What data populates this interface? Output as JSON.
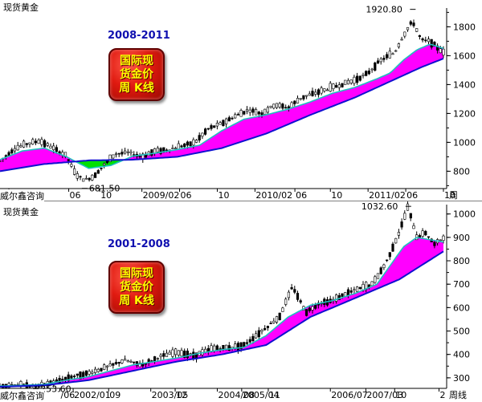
{
  "chart_data": [
    {
      "type": "candlestick",
      "title": "现货黄金",
      "range_label": "2008-2011",
      "badge_lines": [
        "国际现",
        "货金价",
        "周 K线"
      ],
      "credit": "威尔鑫咨询",
      "x_tick_labels": [
        ".2",
        "06",
        "10",
        "2009/02",
        "06",
        "10",
        "2010/02",
        "06",
        "10",
        "2011/02",
        "06",
        "10"
      ],
      "period_label": "周",
      "y_ticks": [
        800,
        1000,
        1200,
        1400,
        1600,
        1800
      ],
      "ylim": [
        680,
        1930
      ],
      "annotations": [
        {
          "text": "1920.80",
          "value": 1920.8
        },
        {
          "text": "681.50",
          "value": 681.5
        }
      ],
      "series": [
        {
          "kind": "price",
          "x": [
            0.0,
            0.03,
            0.06,
            0.09,
            0.12,
            0.15,
            0.17,
            0.19,
            0.21,
            0.23,
            0.26,
            0.29,
            0.32,
            0.35,
            0.38,
            0.41,
            0.44,
            0.47,
            0.5,
            0.53,
            0.56,
            0.59,
            0.62,
            0.65,
            0.68,
            0.71,
            0.74,
            0.77,
            0.8,
            0.83,
            0.85,
            0.87,
            0.89,
            0.91,
            0.93,
            0.95,
            0.97,
            1.0
          ],
          "values": [
            870,
            950,
            990,
            1010,
            960,
            905,
            780,
            740,
            760,
            830,
            920,
            930,
            900,
            940,
            950,
            975,
            1000,
            1095,
            1130,
            1180,
            1225,
            1200,
            1260,
            1240,
            1310,
            1340,
            1370,
            1400,
            1430,
            1480,
            1545,
            1590,
            1620,
            1740,
            1840,
            1710,
            1700,
            1620
          ]
        },
        {
          "kind": "short_ma",
          "x": [
            0.0,
            0.05,
            0.1,
            0.15,
            0.2,
            0.25,
            0.3,
            0.35,
            0.4,
            0.45,
            0.5,
            0.55,
            0.6,
            0.65,
            0.7,
            0.75,
            0.8,
            0.85,
            0.88,
            0.91,
            0.94,
            0.97,
            1.0
          ],
          "values": [
            880,
            940,
            960,
            900,
            820,
            840,
            905,
            925,
            950,
            980,
            1080,
            1160,
            1190,
            1230,
            1280,
            1340,
            1380,
            1440,
            1480,
            1570,
            1640,
            1680,
            1650
          ]
        },
        {
          "kind": "long_ma",
          "x": [
            0.0,
            0.1,
            0.2,
            0.3,
            0.4,
            0.5,
            0.6,
            0.7,
            0.8,
            0.85,
            0.9,
            0.95,
            1.0
          ],
          "values": [
            800,
            850,
            875,
            880,
            900,
            960,
            1060,
            1190,
            1310,
            1380,
            1450,
            1520,
            1580
          ]
        }
      ]
    },
    {
      "type": "candlestick",
      "title": "现货黄金",
      "range_label": "2001-2008",
      "badge_lines": [
        "国际现",
        "货金价",
        "周 K线"
      ],
      "credit": "威尔鑫咨询",
      "x_tick_labels": [
        "/06",
        "2002/01",
        "09",
        "2003/05",
        "12",
        "2004/08",
        "2005/04",
        "11",
        "2006/07",
        "2007/03",
        "10",
        "2"
      ],
      "period_label": "周线",
      "y_ticks": [
        300,
        400,
        500,
        600,
        700,
        800,
        900,
        1000
      ],
      "ylim": [
        255,
        1040
      ],
      "annotations": [
        {
          "text": "1032.60",
          "value": 1032.6
        },
        {
          "text": "253.60",
          "value": 253.6
        }
      ],
      "series": [
        {
          "kind": "price",
          "x": [
            0.0,
            0.04,
            0.08,
            0.12,
            0.16,
            0.2,
            0.24,
            0.28,
            0.32,
            0.36,
            0.4,
            0.44,
            0.48,
            0.52,
            0.55,
            0.58,
            0.61,
            0.63,
            0.66,
            0.69,
            0.72,
            0.75,
            0.78,
            0.81,
            0.84,
            0.87,
            0.9,
            0.92,
            0.94,
            0.96,
            0.98,
            1.0
          ],
          "values": [
            265,
            272,
            262,
            280,
            305,
            320,
            345,
            375,
            355,
            390,
            410,
            395,
            425,
            430,
            440,
            485,
            530,
            560,
            690,
            580,
            620,
            630,
            660,
            680,
            700,
            790,
            920,
            1030,
            900,
            920,
            870,
            900
          ]
        },
        {
          "kind": "short_ma",
          "x": [
            0.0,
            0.05,
            0.1,
            0.15,
            0.2,
            0.25,
            0.3,
            0.35,
            0.4,
            0.45,
            0.5,
            0.55,
            0.6,
            0.65,
            0.7,
            0.75,
            0.8,
            0.85,
            0.88,
            0.91,
            0.94,
            0.97,
            1.0
          ],
          "values": [
            265,
            268,
            272,
            290,
            305,
            330,
            355,
            370,
            385,
            405,
            420,
            430,
            480,
            560,
            610,
            630,
            660,
            700,
            780,
            860,
            900,
            890,
            880
          ]
        },
        {
          "kind": "long_ma",
          "x": [
            0.0,
            0.1,
            0.2,
            0.3,
            0.4,
            0.5,
            0.6,
            0.7,
            0.8,
            0.9,
            1.0
          ],
          "values": [
            262,
            268,
            290,
            330,
            370,
            400,
            440,
            560,
            640,
            720,
            840
          ]
        }
      ]
    }
  ]
}
